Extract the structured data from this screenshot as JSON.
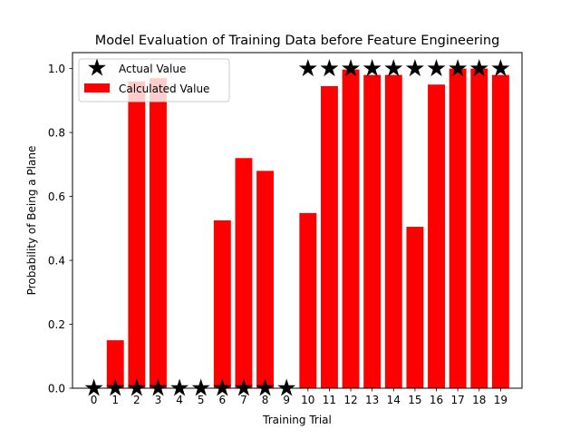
{
  "chart_data": {
    "type": "bar",
    "title": "Model Evaluation of Training Data before Feature Engineering",
    "xlabel": "Training Trial",
    "ylabel": "Probability of Being a Plane",
    "categories": [
      "0",
      "1",
      "2",
      "3",
      "4",
      "5",
      "6",
      "7",
      "8",
      "9",
      "10",
      "11",
      "12",
      "13",
      "14",
      "15",
      "16",
      "17",
      "18",
      "19"
    ],
    "ylim": [
      0,
      1.05
    ],
    "yticks": [
      0.0,
      0.2,
      0.4,
      0.6,
      0.8,
      1.0
    ],
    "ytick_labels": [
      "0.0",
      "0.2",
      "0.4",
      "0.6",
      "0.8",
      "1.0"
    ],
    "grid": false,
    "legend_position": "top-left",
    "series": [
      {
        "name": "Actual Value",
        "kind": "scatter",
        "marker": "star",
        "color": "#000000",
        "values": [
          0,
          0,
          0,
          0,
          0,
          0,
          0,
          0,
          0,
          0,
          1,
          1,
          1,
          1,
          1,
          1,
          1,
          1,
          1,
          1
        ]
      },
      {
        "name": "Calculated Value",
        "kind": "bar",
        "color": "#ff0000",
        "values": [
          0.0,
          0.15,
          0.96,
          0.97,
          0.0,
          0.0,
          0.525,
          0.72,
          0.68,
          0.0,
          0.548,
          0.945,
          0.997,
          0.98,
          0.98,
          0.505,
          0.95,
          1.0,
          1.0,
          0.98
        ]
      }
    ]
  }
}
